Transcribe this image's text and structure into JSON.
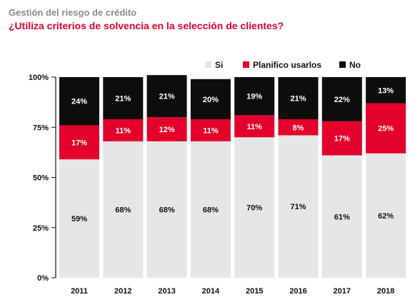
{
  "chart_data": {
    "type": "bar",
    "stacked": true,
    "supertitle": "Gestión del riesgo de crédito",
    "title": "¿Utiliza criterios de solvencia en la selección de clientes?",
    "categories": [
      "2011",
      "2012",
      "2013",
      "2014",
      "2015",
      "2016",
      "2017",
      "2018"
    ],
    "series": [
      {
        "name": "Si",
        "color": "#e6e6e6",
        "label_color": "#111111",
        "values": [
          59,
          68,
          68,
          68,
          70,
          71,
          61,
          62
        ]
      },
      {
        "name": "Planifico usarlos",
        "color": "#e3002b",
        "label_color": "#ffffff",
        "values": [
          17,
          11,
          12,
          11,
          11,
          8,
          17,
          25
        ]
      },
      {
        "name": "No",
        "color": "#0d0d0d",
        "label_color": "#ffffff",
        "values": [
          24,
          21,
          21,
          20,
          19,
          21,
          22,
          13
        ]
      }
    ],
    "y_ticks": [
      "0%",
      "25%",
      "50%",
      "75%",
      "100%"
    ],
    "ylim": [
      0,
      100
    ],
    "legend": "top-right",
    "grid": false,
    "title_color": "#e3002b",
    "supertitle_color": "#8a8a8a"
  }
}
